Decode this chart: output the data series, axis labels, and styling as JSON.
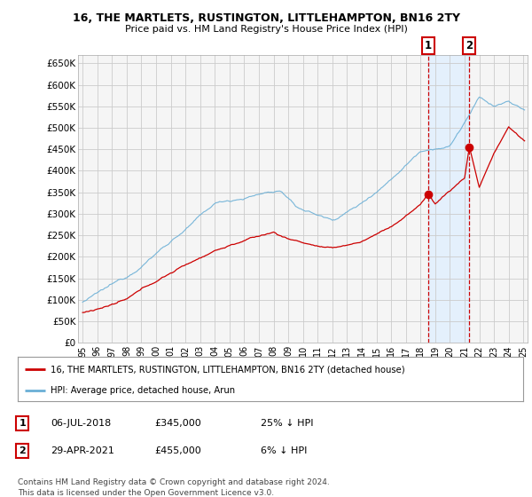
{
  "title": "16, THE MARTLETS, RUSTINGTON, LITTLEHAMPTON, BN16 2TY",
  "subtitle": "Price paid vs. HM Land Registry's House Price Index (HPI)",
  "legend_line1": "16, THE MARTLETS, RUSTINGTON, LITTLEHAMPTON, BN16 2TY (detached house)",
  "legend_line2": "HPI: Average price, detached house, Arun",
  "annotation1_date": "06-JUL-2018",
  "annotation1_price": "£345,000",
  "annotation1_pct": "25% ↓ HPI",
  "annotation2_date": "29-APR-2021",
  "annotation2_price": "£455,000",
  "annotation2_pct": "6% ↓ HPI",
  "footnote": "Contains HM Land Registry data © Crown copyright and database right 2024.\nThis data is licensed under the Open Government Licence v3.0.",
  "hpi_color": "#6aafd6",
  "price_color": "#cc0000",
  "dot_color": "#cc0000",
  "plot_bg_color": "#f5f5f5",
  "grid_color": "#cccccc",
  "shade_color": "#ddeeff",
  "ylim": [
    0,
    670000
  ],
  "yticks": [
    0,
    50000,
    100000,
    150000,
    200000,
    250000,
    300000,
    350000,
    400000,
    450000,
    500000,
    550000,
    600000,
    650000
  ],
  "ytick_labels": [
    "£0",
    "£50K",
    "£100K",
    "£150K",
    "£200K",
    "£250K",
    "£300K",
    "£350K",
    "£400K",
    "£450K",
    "£500K",
    "£550K",
    "£600K",
    "£650K"
  ],
  "sale1_x": 2018.54,
  "sale1_y": 345000,
  "sale2_x": 2021.33,
  "sale2_y": 455000,
  "xlim_left": 1994.7,
  "xlim_right": 2025.3
}
